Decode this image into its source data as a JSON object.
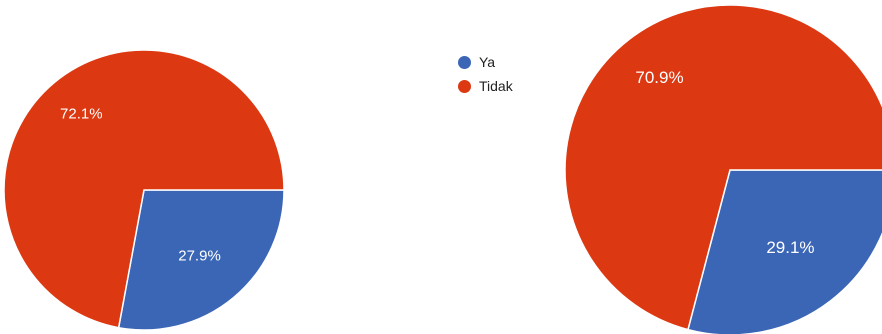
{
  "legend": {
    "items": [
      {
        "label": "Ya",
        "color": "#3b66b6"
      },
      {
        "label": "Tidak",
        "color": "#dc3912"
      }
    ]
  },
  "chart_data": [
    {
      "type": "pie",
      "title": "",
      "categories": [
        "Ya",
        "Tidak"
      ],
      "values": [
        27.9,
        72.1
      ],
      "labels": [
        "27.9%",
        "72.1%"
      ],
      "colors": [
        "#3b66b6",
        "#dc3912"
      ],
      "legend": "top-right"
    },
    {
      "type": "pie",
      "title": "",
      "categories": [
        "Ya",
        "Tidak"
      ],
      "values": [
        29.1,
        70.9
      ],
      "labels": [
        "29.1%",
        "70.9%"
      ],
      "colors": [
        "#3b66b6",
        "#dc3912"
      ],
      "legend": "none"
    }
  ]
}
